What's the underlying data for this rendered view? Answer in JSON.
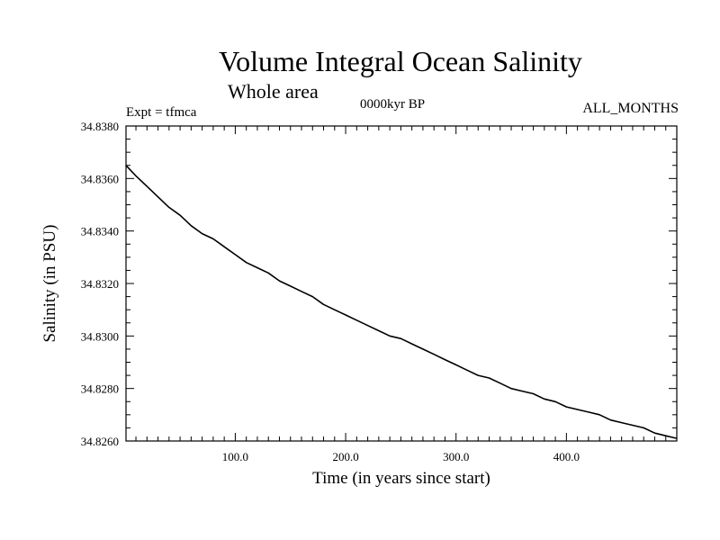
{
  "chart_data": {
    "type": "line",
    "title": "Volume Integral Ocean Salinity",
    "subtitle": "Whole area",
    "annotations": {
      "experiment": "Expt = tfmca",
      "period": "0000kyr BP",
      "months": "ALL_MONTHS"
    },
    "xlabel": "Time (in years since start)",
    "ylabel": "Salinity (in PSU)",
    "xlim": [
      1,
      500
    ],
    "ylim": [
      34.826,
      34.838
    ],
    "xticks": [
      {
        "value": 100,
        "label": "100.0"
      },
      {
        "value": 200,
        "label": "200.0"
      },
      {
        "value": 300,
        "label": "300.0"
      },
      {
        "value": 400,
        "label": "400.0"
      }
    ],
    "yticks": [
      {
        "value": 34.826,
        "label": "34.8260"
      },
      {
        "value": 34.828,
        "label": "34.8280"
      },
      {
        "value": 34.83,
        "label": "34.8300"
      },
      {
        "value": 34.832,
        "label": "34.8320"
      },
      {
        "value": 34.834,
        "label": "34.8340"
      },
      {
        "value": 34.836,
        "label": "34.8360"
      },
      {
        "value": 34.838,
        "label": "34.8380"
      }
    ],
    "grid": false,
    "series": [
      {
        "x": [
          1,
          10,
          20,
          30,
          40,
          50,
          60,
          70,
          80,
          90,
          100,
          110,
          120,
          130,
          140,
          150,
          160,
          170,
          180,
          190,
          200,
          210,
          220,
          230,
          240,
          250,
          260,
          270,
          280,
          290,
          300,
          310,
          320,
          330,
          340,
          350,
          360,
          370,
          380,
          390,
          400,
          410,
          420,
          430,
          440,
          450,
          460,
          470,
          480,
          490,
          500
        ],
        "y": [
          34.8365,
          34.8361,
          34.8357,
          34.8353,
          34.8349,
          34.8346,
          34.8342,
          34.8339,
          34.8337,
          34.8334,
          34.8331,
          34.8328,
          34.8326,
          34.8324,
          34.8321,
          34.8319,
          34.8317,
          34.8315,
          34.8312,
          34.831,
          34.8308,
          34.8306,
          34.8304,
          34.8302,
          34.83,
          34.8299,
          34.8297,
          34.8295,
          34.8293,
          34.8291,
          34.8289,
          34.8287,
          34.8285,
          34.8284,
          34.8282,
          34.828,
          34.8279,
          34.8278,
          34.8276,
          34.8275,
          34.8273,
          34.8272,
          34.8271,
          34.827,
          34.8268,
          34.8267,
          34.8266,
          34.8265,
          34.8263,
          34.8262,
          34.8261
        ]
      }
    ]
  }
}
